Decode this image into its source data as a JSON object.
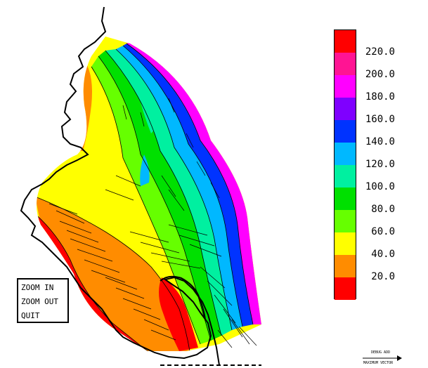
{
  "menu": {
    "items": [
      "ZOOM IN",
      "ZOOM OUT",
      "QUIT"
    ]
  },
  "legend": {
    "labels": [
      "220.0",
      "200.0",
      "180.0",
      "160.0",
      "140.0",
      "120.0",
      "100.0",
      "80.0",
      "60.0",
      "40.0",
      "20.0"
    ],
    "colors": [
      "#ff0000",
      "#ff1493",
      "#ff00ff",
      "#7f00ff",
      "#0033ff",
      "#00b8ff",
      "#00f0a0",
      "#00e000",
      "#66ff00",
      "#ffff00",
      "#ff8c00",
      "#ff0000"
    ]
  },
  "scale": {
    "label_top": "DEBUG ADD",
    "label_bottom": "MAXIMUM VECTOR"
  }
}
